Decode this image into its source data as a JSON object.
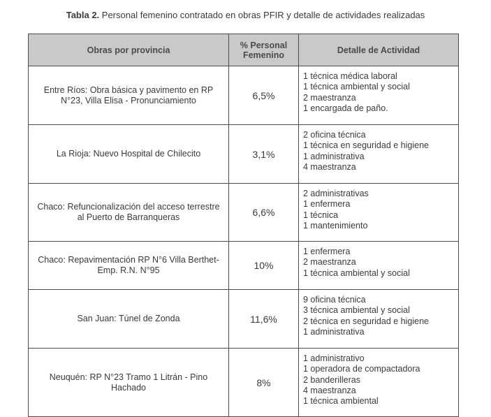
{
  "caption": {
    "label": "Tabla 2.",
    "text": " Personal femenino contratado en obras PFIR y detalle de actividades realizadas"
  },
  "table": {
    "headers": [
      "Obras por provincia",
      "% Personal Femenino",
      "Detalle de Actividad"
    ],
    "rows": [
      {
        "obra": "Entre Ríos: Obra básica y pavimento en RP N°23, Villa Elisa - Pronunciamiento",
        "porcentaje": "6,5%",
        "detalle": [
          "1 técnica médica laboral",
          "1 técnica ambiental y social",
          "2 maestranza",
          "1 encargada de paño."
        ]
      },
      {
        "obra": "La Rioja: Nuevo Hospital de Chilecito",
        "porcentaje": "3,1%",
        "detalle": [
          "2 oficina técnica",
          "1 técnica en seguridad e higiene",
          "1 administrativa",
          "4 maestranza"
        ]
      },
      {
        "obra": "Chaco: Refuncionalización del acceso terrestre al Puerto de Barranqueras",
        "porcentaje": "6,6%",
        "detalle": [
          "2 administrativas",
          "1 enfermera",
          "1 técnica",
          "1 mantenimiento"
        ]
      },
      {
        "obra": "Chaco: Repavimentación RP N°6 Villa Berthet- Emp. R.N. N°95",
        "porcentaje": "10%",
        "detalle": [
          "1 enfermera",
          "2 maestranza",
          "1 técnica ambiental y social"
        ]
      },
      {
        "obra": "San Juan: Túnel de Zonda",
        "porcentaje": "11,6%",
        "detalle": [
          "9 oficina técnica",
          "3 técnica ambiental y social",
          "2 técnica en seguridad e higiene",
          "1 administrativa"
        ]
      },
      {
        "obra": "Neuquén: RP N°23 Tramo 1 Litrán - Pino Hachado",
        "porcentaje": "8%",
        "detalle": [
          "1 administrativo",
          "1 operadora de compactadora",
          "2 banderilleras",
          "4 maestranza",
          "1 técnica ambiental"
        ]
      }
    ]
  }
}
